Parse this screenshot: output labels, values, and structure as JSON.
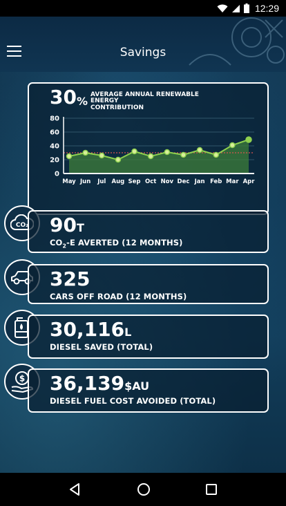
{
  "status_bar": {
    "time": "12:29"
  },
  "app_bar": {
    "title": "Savings"
  },
  "renewable": {
    "percent": "30",
    "percent_sign": "%",
    "label_line1": "AVERAGE ANNUAL RENEWABLE ENERGY",
    "label_line2": "CONTRIBUTION"
  },
  "chart_data": {
    "type": "line",
    "categories": [
      "May",
      "Jun",
      "Jul",
      "Aug",
      "Sep",
      "Oct",
      "Nov",
      "Dec",
      "Jan",
      "Feb",
      "Mar",
      "Apr"
    ],
    "series": [
      {
        "values": [
          25,
          30,
          26,
          20,
          32,
          25,
          31,
          27,
          34,
          27,
          41,
          49
        ]
      }
    ],
    "average": 30,
    "ylim": [
      0,
      80
    ],
    "yticks": [
      0,
      20,
      40,
      60,
      80
    ],
    "grid": true,
    "colors": {
      "line": "#8fd14f",
      "fill": "#3e7d3a",
      "average": "#d9534f"
    }
  },
  "stats": [
    {
      "value": "90",
      "unit": "T",
      "caption_pre": "CO",
      "caption_sub": "2",
      "caption_post": "-E AVERTED (12 MONTHS)",
      "icon": "co2-cloud-icon"
    },
    {
      "value": "325",
      "unit": "",
      "caption": "CARS OFF ROAD (12 MONTHS)",
      "icon": "car-icon"
    },
    {
      "value": "30,116",
      "unit": "L",
      "caption": "DIESEL SAVED (TOTAL)",
      "icon": "fuel-can-icon"
    },
    {
      "value": "36,139",
      "unit": "$AU",
      "caption": "DIESEL FUEL COST AVOIDED (TOTAL)",
      "icon": "money-hand-icon"
    }
  ]
}
